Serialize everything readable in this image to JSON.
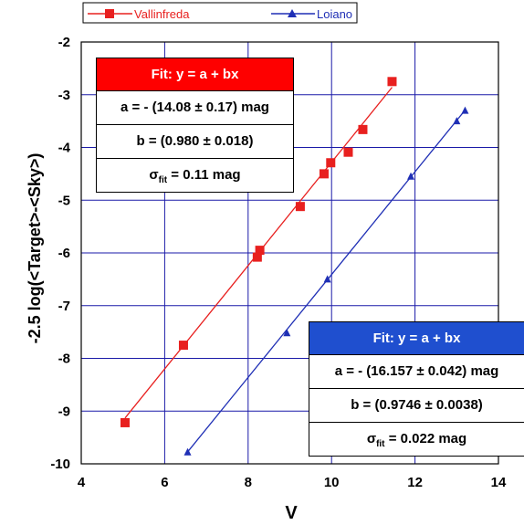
{
  "chart_data": {
    "type": "scatter",
    "xlabel": "V",
    "ylabel": "-2.5 log(<Target>-<Sky>)",
    "xlim": [
      4,
      14
    ],
    "ylim": [
      -10,
      -2
    ],
    "xticks": [
      4,
      6,
      8,
      10,
      12,
      14
    ],
    "yticks": [
      -2,
      -3,
      -4,
      -5,
      -6,
      -7,
      -8,
      -9,
      -10
    ],
    "grid": true,
    "legend_position": "top-left",
    "series": [
      {
        "name": "Vallinfreda",
        "color": "#e8201f",
        "marker": "square",
        "points": [
          {
            "x": 5.05,
            "y": -9.22
          },
          {
            "x": 6.45,
            "y": -7.75
          },
          {
            "x": 8.22,
            "y": -6.08
          },
          {
            "x": 8.28,
            "y": -5.95
          },
          {
            "x": 9.25,
            "y": -5.12
          },
          {
            "x": 9.82,
            "y": -4.5
          },
          {
            "x": 9.98,
            "y": -4.29
          },
          {
            "x": 10.4,
            "y": -4.09
          },
          {
            "x": 10.75,
            "y": -3.66
          },
          {
            "x": 11.45,
            "y": -2.75
          }
        ],
        "fit": {
          "a": -14.08,
          "b": 0.98
        }
      },
      {
        "name": "Loiano",
        "color": "#1f2fb5",
        "marker": "triangle",
        "points": [
          {
            "x": 6.55,
            "y": -9.78
          },
          {
            "x": 8.93,
            "y": -7.52
          },
          {
            "x": 9.9,
            "y": -6.5
          },
          {
            "x": 11.9,
            "y": -4.55
          },
          {
            "x": 13.0,
            "y": -3.5
          },
          {
            "x": 13.2,
            "y": -3.3
          }
        ],
        "fit": {
          "a": -16.157,
          "b": 0.9746
        }
      }
    ]
  },
  "fit_boxes": [
    {
      "header": "Fit: y = a + bx",
      "a_text": "a = - (14.08 ± 0.17) mag",
      "b_text": "b = (0.980 ± 0.018)",
      "sigma_symbol": "σ",
      "sigma_sub": "fit",
      "sigma_value": " = 0.11 mag",
      "color": "#fe0000"
    },
    {
      "header": "Fit: y = a + bx",
      "a_text": "a = - (16.157 ± 0.042) mag",
      "b_text": "b = (0.9746 ± 0.0038)",
      "sigma_symbol": "σ",
      "sigma_sub": "fit",
      "sigma_value": " = 0.022 mag",
      "color": "#1f4fcf"
    }
  ]
}
